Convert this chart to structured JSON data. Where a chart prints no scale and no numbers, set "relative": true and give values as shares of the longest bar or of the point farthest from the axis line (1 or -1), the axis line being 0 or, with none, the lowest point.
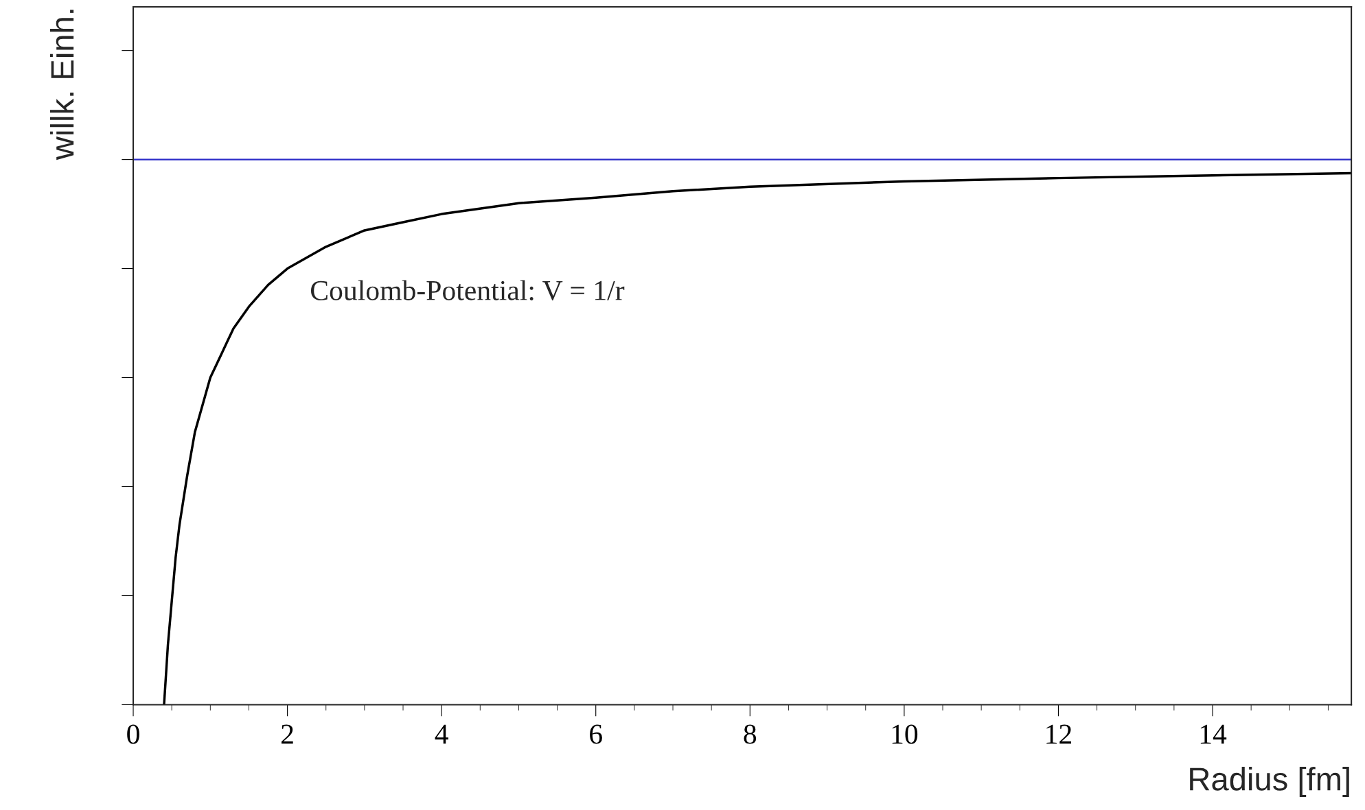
{
  "chart_data": {
    "type": "line",
    "xlabel": "Radius [fm]",
    "ylabel": "willk. Einh.",
    "relative": true,
    "x": [
      0.4,
      0.45,
      0.5,
      0.55,
      0.6,
      0.7,
      0.8,
      0.9,
      1,
      1.1,
      1.2,
      1.3,
      1.5,
      1.75,
      2,
      2.5,
      3,
      3.5,
      4,
      5,
      6,
      7,
      8,
      10,
      12,
      14,
      15.8
    ],
    "series": [
      {
        "color": "#000000",
        "values": [
          -1.0,
          -0.89,
          -0.81,
          -0.73,
          -0.67,
          -0.58,
          -0.5,
          -0.45,
          -0.4,
          -0.37,
          -0.34,
          -0.31,
          -0.27,
          -0.23,
          -0.2,
          -0.16,
          -0.13,
          -0.115,
          -0.1,
          -0.08,
          -0.07,
          -0.058,
          -0.05,
          -0.04,
          -0.034,
          -0.029,
          -0.025
        ]
      }
    ],
    "xlim": [
      0,
      15.8
    ],
    "xticks": [
      0,
      2,
      4,
      6,
      8,
      10,
      12,
      14
    ],
    "ref_lines": [
      {
        "axis": "y",
        "value": 0,
        "color": "#2b2bc8"
      }
    ],
    "annotations": [
      "Coulomb-Potential: V = 1/r"
    ],
    "tick_labels": "x",
    "grid": false,
    "legend": false,
    "marker": "none",
    "line_style": "solid"
  }
}
